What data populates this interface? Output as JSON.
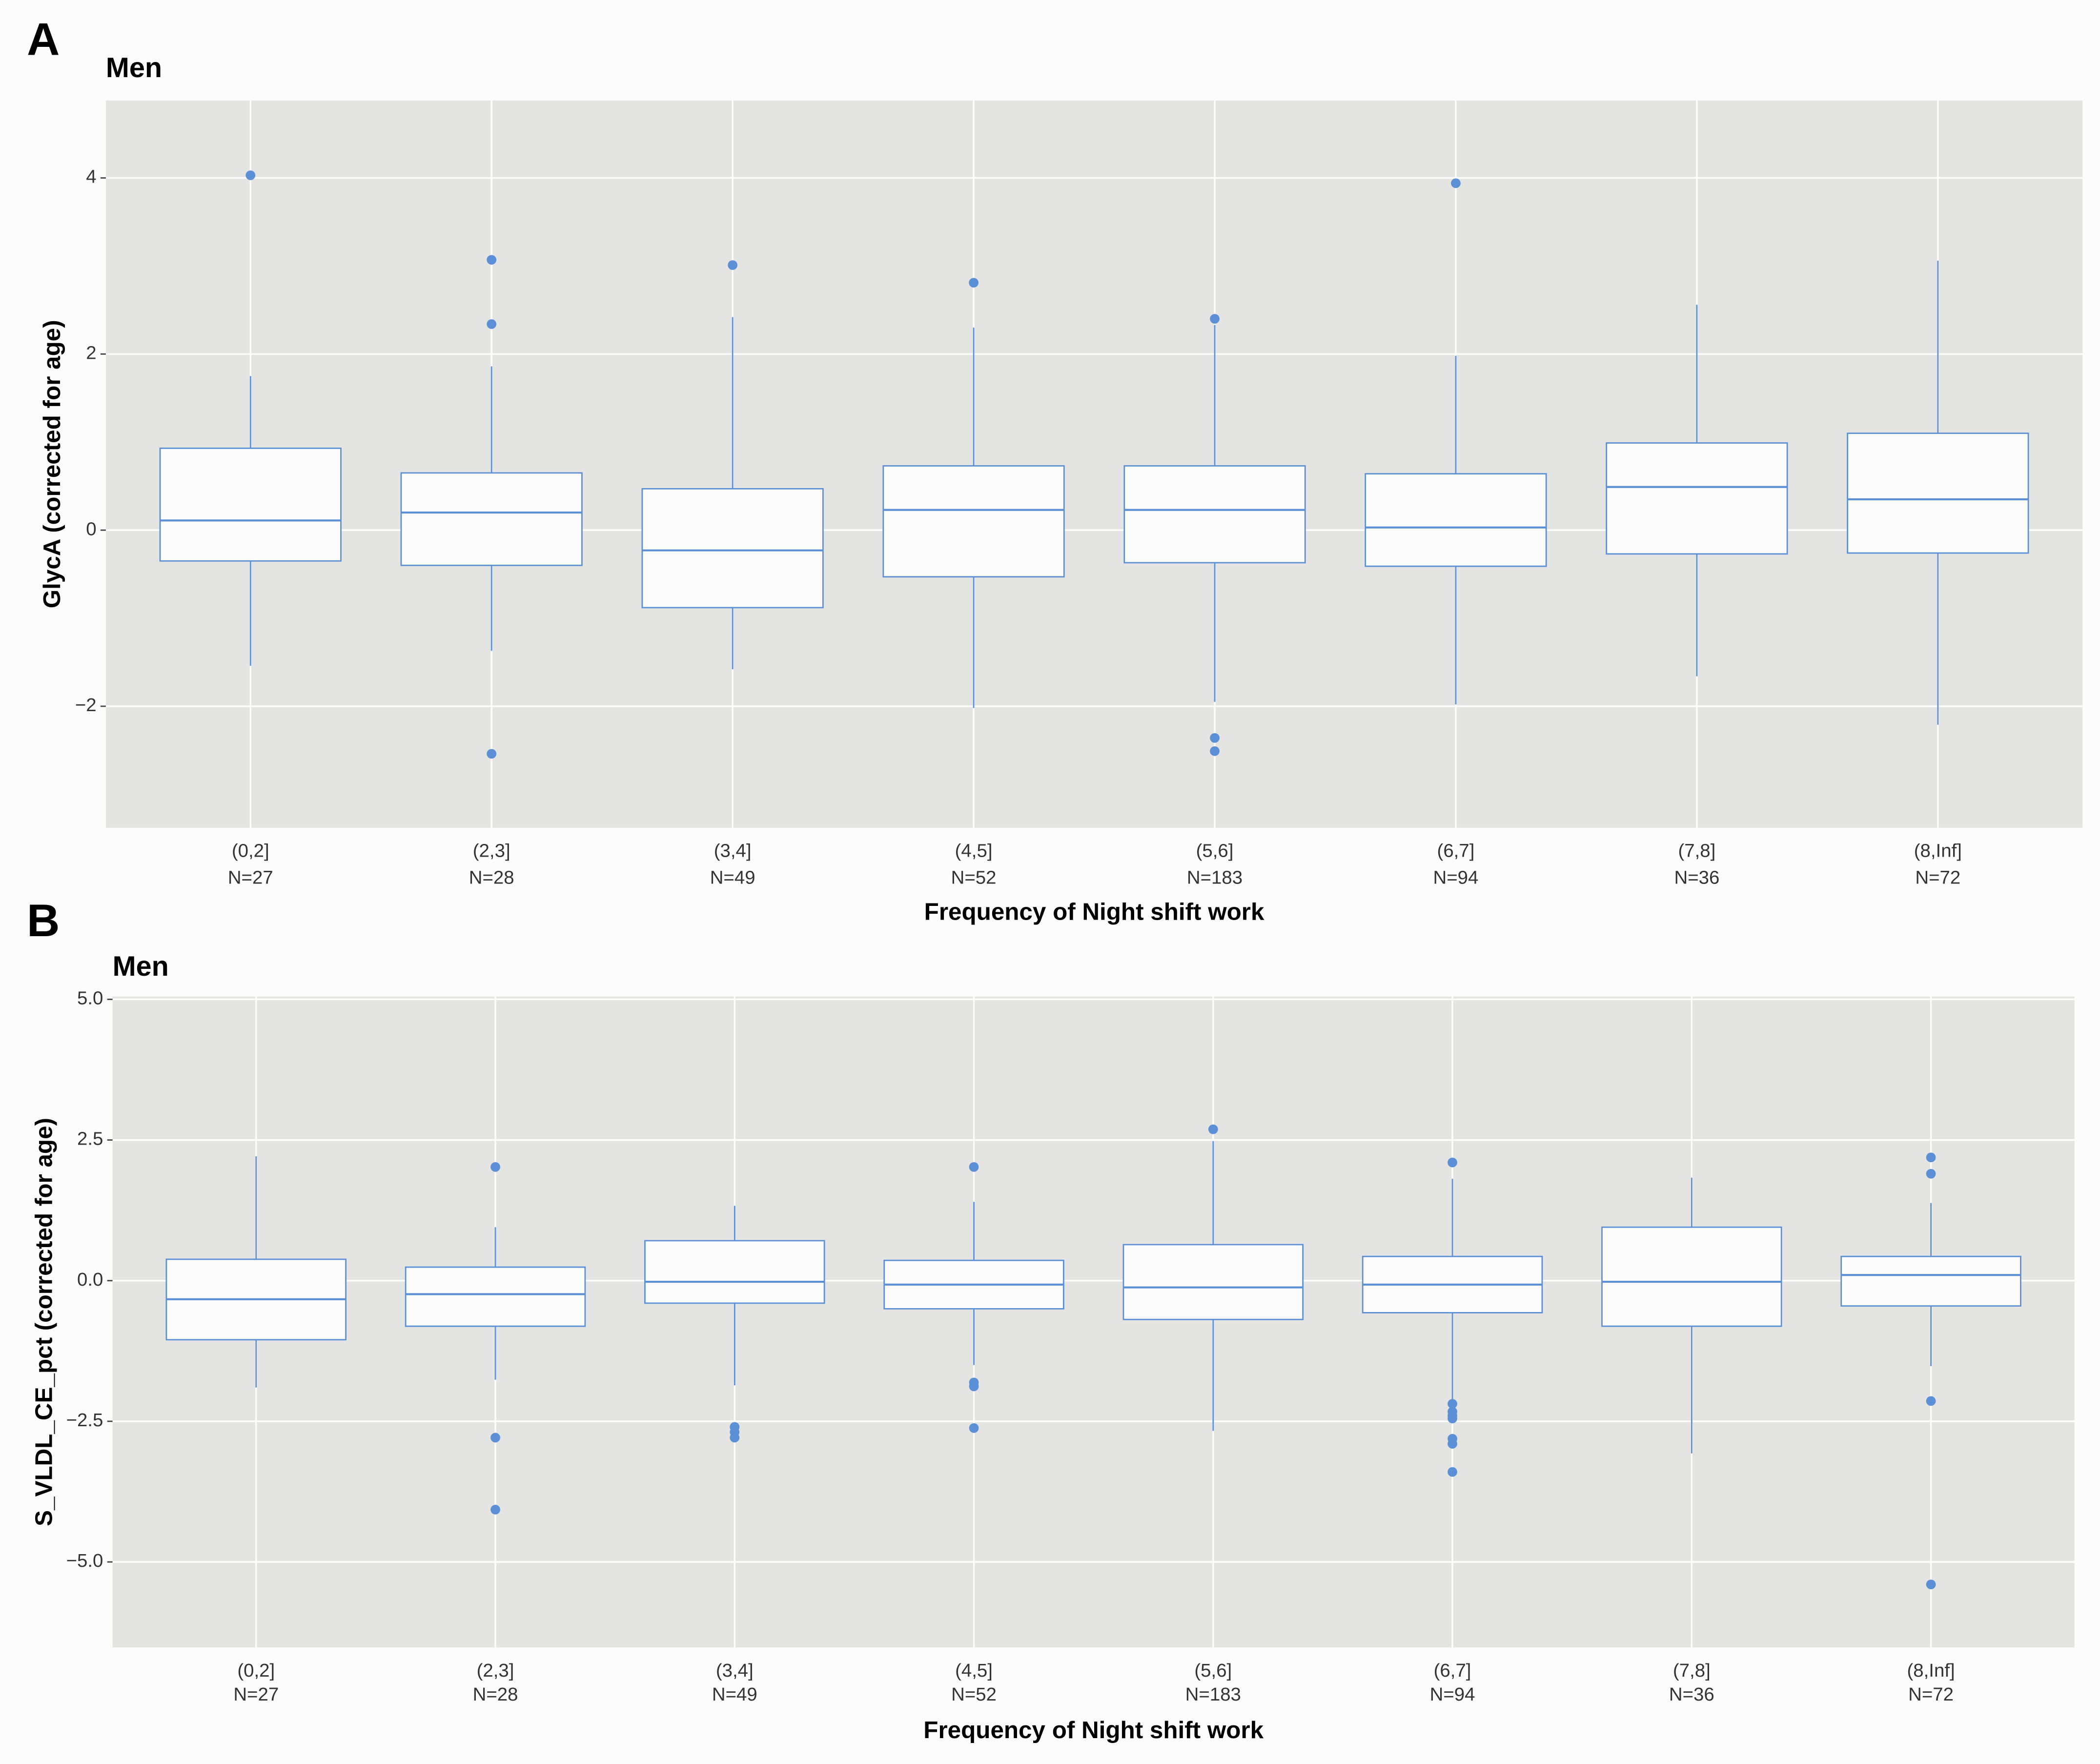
{
  "chart_data": [
    {
      "type": "box",
      "panel_label": "A",
      "title": "Men",
      "x_label": "Frequency of Night shift work",
      "y_label": "GlycA (corrected for age)",
      "categories": [
        "(0,2]",
        "(2,3]",
        "(3,4]",
        "(4,5]",
        "(5,6]",
        "(6,7]",
        "(7,8]",
        "(8,Inf]"
      ],
      "n_labels": [
        "N=27",
        "N=28",
        "N=49",
        "N=52",
        "N=183",
        "N=94",
        "N=36",
        "N=72"
      ],
      "color": "#5b8fd6",
      "grid": true,
      "ylim": [
        -3.38,
        4.88
      ],
      "yticks": [
        {
          "value": -2,
          "label": "−2"
        },
        0,
        2,
        4
      ],
      "boxes": [
        {
          "whisker_low": -1.54,
          "q1": -0.35,
          "median": 0.11,
          "q3": 0.93,
          "whisker_high": 1.75,
          "outliers": [
            4.03
          ]
        },
        {
          "whisker_low": -1.37,
          "q1": -0.4,
          "median": 0.2,
          "q3": 0.65,
          "whisker_high": 1.86,
          "outliers": [
            3.07,
            2.34,
            -2.54
          ]
        },
        {
          "whisker_low": -1.58,
          "q1": -0.88,
          "median": -0.23,
          "q3": 0.47,
          "whisker_high": 2.42,
          "outliers": [
            3.01
          ]
        },
        {
          "whisker_low": -2.02,
          "q1": -0.53,
          "median": 0.23,
          "q3": 0.73,
          "whisker_high": 2.3,
          "outliers": [
            2.81
          ]
        },
        {
          "whisker_low": -1.95,
          "q1": -0.37,
          "median": 0.23,
          "q3": 0.73,
          "whisker_high": 2.33,
          "outliers": [
            2.4,
            -2.36,
            -2.51
          ]
        },
        {
          "whisker_low": -1.98,
          "q1": -0.41,
          "median": 0.03,
          "q3": 0.64,
          "whisker_high": 1.98,
          "outliers": [
            3.94
          ]
        },
        {
          "whisker_low": -1.66,
          "q1": -0.27,
          "median": 0.49,
          "q3": 0.99,
          "whisker_high": 2.56,
          "outliers": []
        },
        {
          "whisker_low": -2.21,
          "q1": -0.26,
          "median": 0.35,
          "q3": 1.1,
          "whisker_high": 3.06,
          "outliers": []
        }
      ]
    },
    {
      "type": "box",
      "panel_label": "B",
      "title": "Men",
      "x_label": "Frequency of Night shift work",
      "y_label": "S_VLDL_CE_pct (corrected for age)",
      "categories": [
        "(0,2]",
        "(2,3]",
        "(3,4]",
        "(4,5]",
        "(5,6]",
        "(6,7]",
        "(7,8]",
        "(8,Inf]"
      ],
      "n_labels": [
        "N=27",
        "N=28",
        "N=49",
        "N=52",
        "N=183",
        "N=94",
        "N=36",
        "N=72"
      ],
      "color": "#5b8fd6",
      "grid": true,
      "ylim": [
        -6.52,
        5.05
      ],
      "yticks": [
        {
          "value": -5,
          "label": "−5.0"
        },
        {
          "value": -2.5,
          "label": "−2.5"
        },
        {
          "value": 0,
          "label": "0.0"
        },
        2.5,
        {
          "value": 5,
          "label": "5.0"
        }
      ],
      "boxes": [
        {
          "whisker_low": -1.9,
          "q1": -1.05,
          "median": -0.33,
          "q3": 0.38,
          "whisker_high": 2.21,
          "outliers": []
        },
        {
          "whisker_low": -1.76,
          "q1": -0.81,
          "median": -0.24,
          "q3": 0.24,
          "whisker_high": 0.95,
          "outliers": [
            2.02,
            -2.79,
            -4.07
          ]
        },
        {
          "whisker_low": -1.86,
          "q1": -0.4,
          "median": -0.02,
          "q3": 0.71,
          "whisker_high": 1.33,
          "outliers": [
            -2.6,
            -2.69,
            -2.79
          ]
        },
        {
          "whisker_low": -1.5,
          "q1": -0.5,
          "median": -0.07,
          "q3": 0.36,
          "whisker_high": 1.4,
          "outliers": [
            2.02,
            -1.81,
            -1.88,
            -2.62
          ]
        },
        {
          "whisker_low": -2.67,
          "q1": -0.69,
          "median": -0.12,
          "q3": 0.64,
          "whisker_high": 2.48,
          "outliers": [
            2.69
          ]
        },
        {
          "whisker_low": -2.14,
          "q1": -0.57,
          "median": -0.07,
          "q3": 0.43,
          "whisker_high": 1.81,
          "outliers": [
            2.1,
            -2.19,
            -2.33,
            -2.4,
            -2.45,
            -2.81,
            -2.9,
            -3.4
          ]
        },
        {
          "whisker_low": -3.07,
          "q1": -0.81,
          "median": -0.02,
          "q3": 0.95,
          "whisker_high": 1.83,
          "outliers": []
        },
        {
          "whisker_low": -1.52,
          "q1": -0.45,
          "median": 0.1,
          "q3": 0.43,
          "whisker_high": 1.38,
          "outliers": [
            2.19,
            1.9,
            -2.14,
            -5.4
          ]
        }
      ]
    }
  ]
}
